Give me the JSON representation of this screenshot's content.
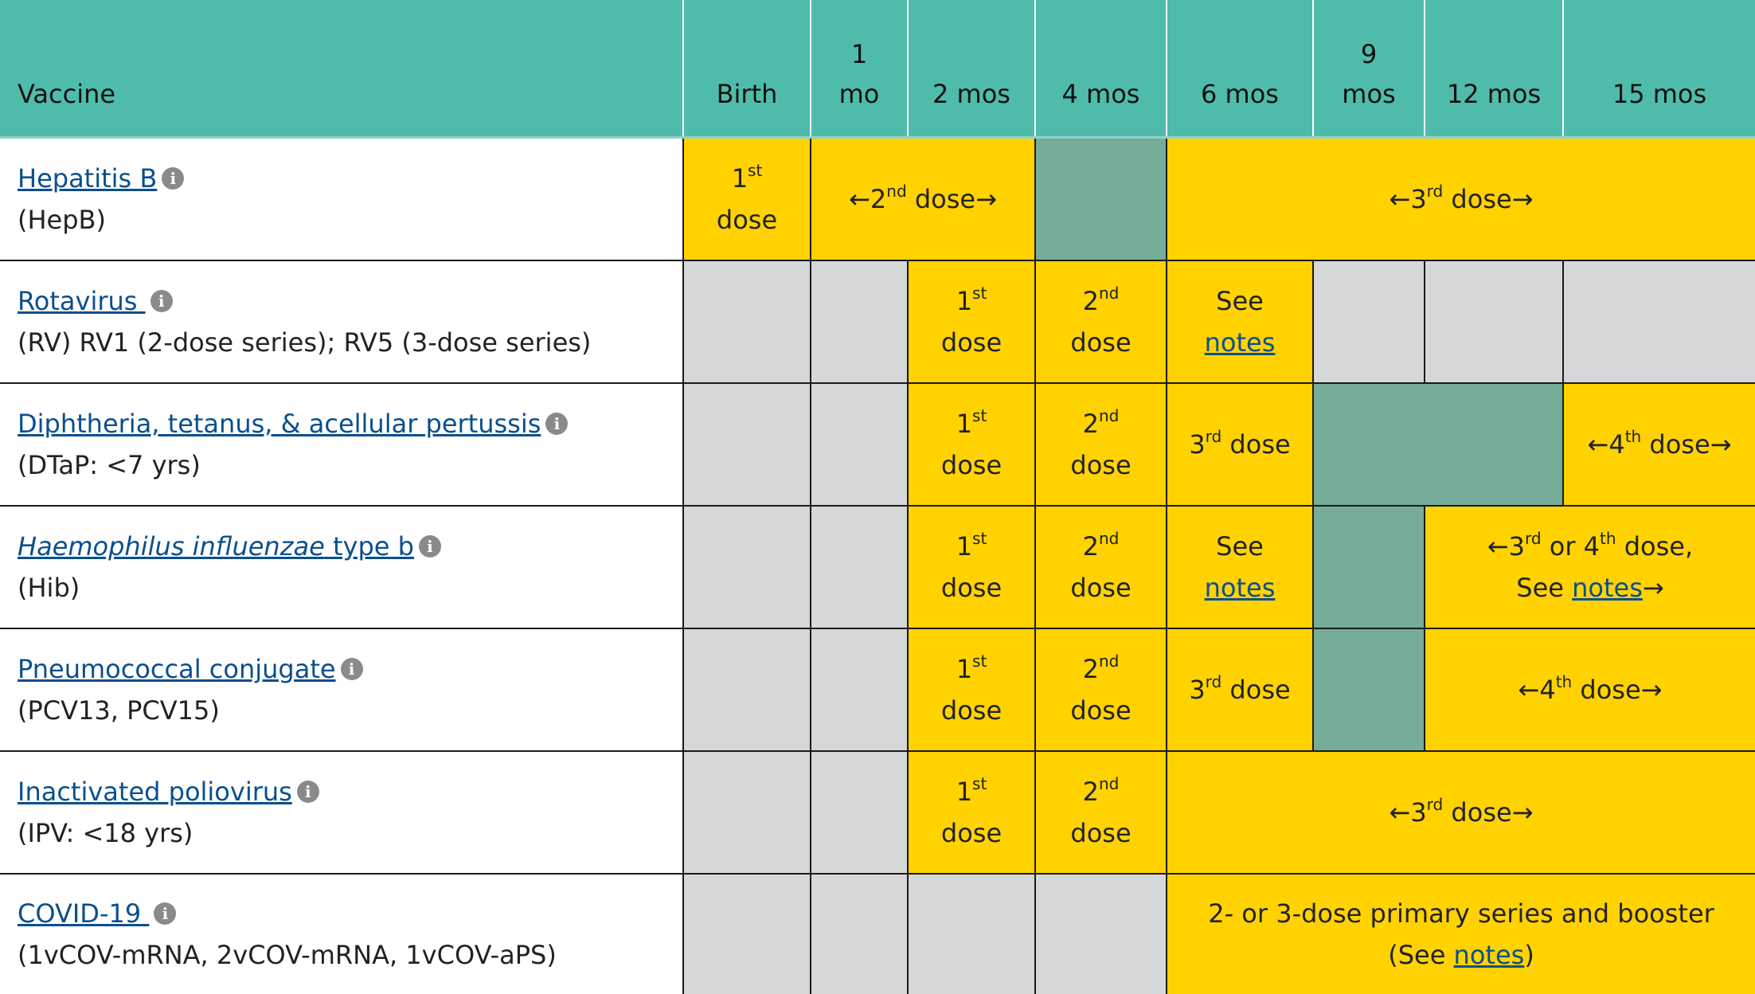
{
  "header": {
    "vaccine": "Vaccine",
    "birth": "Birth",
    "mo1_a": "1",
    "mo1_b": "mo",
    "mo2": "2 mos",
    "mo4": "4 mos",
    "mo6": "6 mos",
    "mo9_a": "9",
    "mo9_b": "mos",
    "mo12": "12 mos",
    "mo15": "15 mos"
  },
  "common": {
    "arrow_left": "←",
    "arrow_right": "→",
    "dose": "dose",
    "see": "See",
    "notes": "notes",
    "first_num": "1",
    "first_sup": "st",
    "second_num": "2",
    "second_sup": "nd",
    "third_num": "3",
    "third_sup": "rd",
    "fourth_num": "4",
    "fourth_sup": "th",
    "dose_word": " dose",
    "info_glyph": "i"
  },
  "rows": {
    "hepb": {
      "name": "Hepatitis B",
      "abbr": "(HepB)"
    },
    "rv": {
      "name": "Rotavirus ",
      "abbr": "(RV) RV1 (2-dose series); RV5 (3-dose series)"
    },
    "dtap": {
      "name": "Diphtheria, tetanus, & acellular pertussis",
      "abbr": "(DTaP: <7 yrs)"
    },
    "hib": {
      "name_italic": "Haemophilus influenzae",
      "name_rest": " type b",
      "abbr": "(Hib)",
      "span_text_a": " or ",
      "span_text_b": " dose,",
      "see_text": "See "
    },
    "pcv": {
      "name": "Pneumococcal conjugate",
      "abbr": "(PCV13, PCV15)"
    },
    "ipv": {
      "name": "Inactivated poliovirus",
      "abbr": "(IPV: <18 yrs)"
    },
    "covid": {
      "name": "COVID-19 ",
      "abbr": "(1vCOV-mRNA, 2vCOV-mRNA, 1vCOV-aPS)",
      "line1": "2- or 3-dose primary series and booster",
      "see_open": "(See ",
      "see_close": ")"
    }
  },
  "colors": {
    "header_teal": "#4fbcab",
    "dose_yellow": "#ffd200",
    "not_recommended_gray": "#d6d7d9",
    "catch_up_green": "#76ad98",
    "link_blue": "#0a4f8e"
  },
  "icons": {
    "info": "info-circle-icon"
  }
}
